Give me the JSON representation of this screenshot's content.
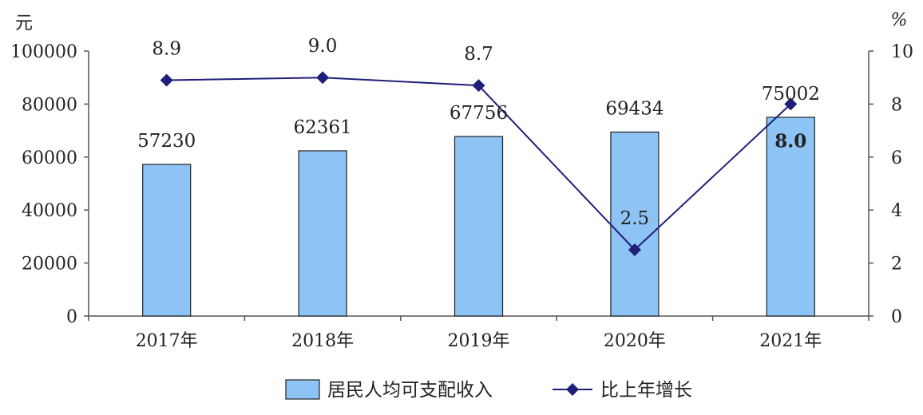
{
  "chart_data": {
    "type": "bar",
    "categories": [
      "2017年",
      "2018年",
      "2019年",
      "2020年",
      "2021年"
    ],
    "series": [
      {
        "name": "居民人均可支配收入",
        "type": "bar",
        "axis": "left",
        "values": [
          57230,
          62361,
          67756,
          69434,
          75002
        ],
        "color": "#8dc3f5",
        "labels": [
          "57230",
          "62361",
          "67756",
          "69434",
          "75002"
        ]
      },
      {
        "name": "比上年增长",
        "type": "line",
        "axis": "right",
        "values": [
          8.9,
          9.0,
          8.7,
          2.5,
          8.0
        ],
        "color": "#1f1f7a",
        "labels": [
          "8.9",
          "9.0",
          "8.7",
          "2.5",
          "8.0"
        ]
      }
    ],
    "y_left": {
      "label": "元",
      "ylim": [
        0,
        100000
      ],
      "ticks": [
        "0",
        "20000",
        "40000",
        "60000",
        "80000",
        "100000"
      ]
    },
    "y_right": {
      "label": "%",
      "ylim": [
        0,
        10
      ],
      "ticks": [
        "0",
        "2",
        "4",
        "6",
        "8",
        "10"
      ]
    },
    "legend": {
      "position": "bottom",
      "items": [
        "居民人均可支配收入",
        "比上年增长"
      ]
    },
    "grid": false
  }
}
